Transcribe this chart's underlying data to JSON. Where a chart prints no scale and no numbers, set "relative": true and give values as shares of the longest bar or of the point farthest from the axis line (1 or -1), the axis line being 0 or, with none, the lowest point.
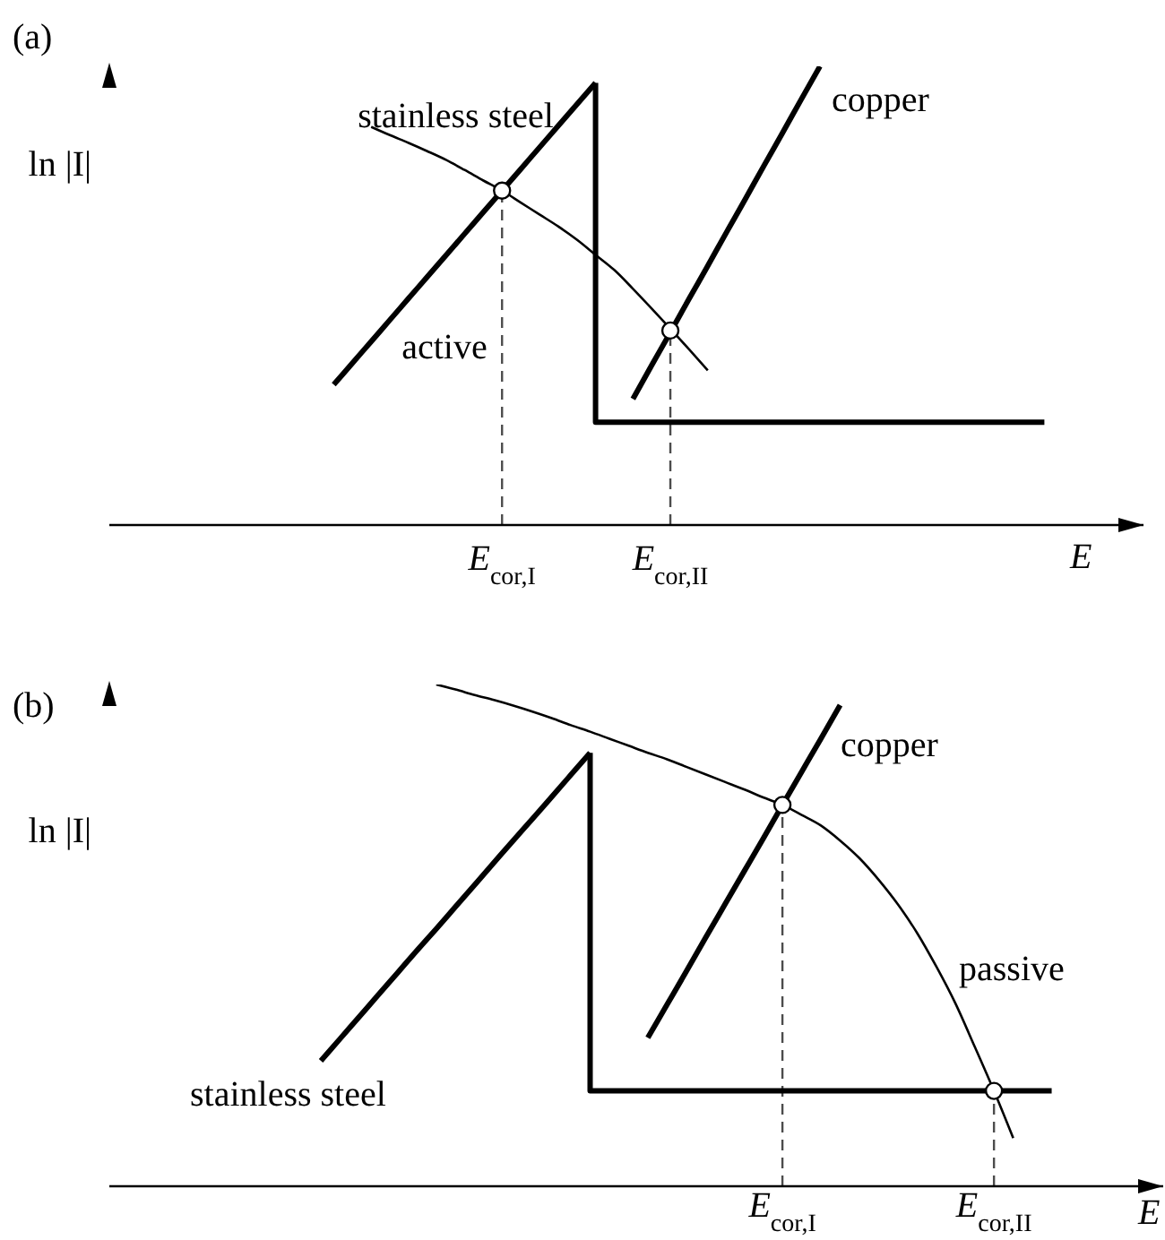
{
  "chart_data": [
    {
      "type": "line",
      "title": "(a)",
      "xlabel": "E",
      "ylabel": "ln |I|",
      "relative": true,
      "annotations": [
        "active"
      ],
      "categories": [
        null,
        null,
        null,
        null,
        null,
        null,
        null,
        null,
        null,
        null,
        null,
        null,
        null,
        null,
        null,
        null,
        null,
        null,
        null,
        null,
        null,
        "E$_{cor,I}$",
        null,
        null,
        null,
        null,
        null,
        null,
        null,
        null,
        "E$_{cor,II}$",
        null,
        null,
        null,
        null,
        null,
        null,
        null,
        null,
        null,
        null,
        null,
        null,
        null,
        null,
        null,
        null,
        null,
        null,
        null,
        null,
        null,
        null,
        null,
        null,
        null
      ],
      "series": [
        {
          "name": "stainless steel",
          "type": "line",
          "color": "#000000",
          "values": [
            null,
            null,
            null,
            null,
            null,
            null,
            null,
            null,
            null,
            null,
            null,
            null,
            0.306,
            0.353,
            0.4,
            0.447,
            0.494,
            0.541,
            0.588,
            0.635,
            0.682,
            0.729,
            0.776,
            0.823,
            0.87,
            0.917,
            0.964,
            null,
            null,
            null,
            null,
            null,
            null,
            null,
            null,
            null,
            null,
            null,
            null,
            null,
            null,
            null,
            null,
            null,
            null,
            null,
            null,
            null,
            null,
            null,
            null,
            null,
            null,
            null,
            null,
            null
          ]
        },
        {
          "type": "step",
          "color": "#000000",
          "values": [
            null,
            null,
            null,
            null,
            null,
            null,
            null,
            null,
            null,
            null,
            null,
            null,
            null,
            null,
            null,
            null,
            null,
            null,
            null,
            null,
            null,
            null,
            null,
            null,
            null,
            null,
            0.964,
            0.224,
            0.224,
            0.224,
            0.224,
            0.224,
            0.224,
            0.224,
            0.224,
            0.224,
            0.224,
            0.224,
            0.224,
            0.224,
            0.224,
            0.224,
            0.224,
            0.224,
            0.224,
            0.224,
            0.224,
            0.224,
            0.224,
            0.224,
            0.224,
            null,
            null,
            null,
            null,
            null
          ]
        },
        {
          "name": "copper",
          "type": "line",
          "color": "#000000",
          "values": [
            null,
            null,
            null,
            null,
            null,
            null,
            null,
            null,
            null,
            null,
            null,
            null,
            null,
            null,
            null,
            null,
            null,
            null,
            null,
            null,
            null,
            null,
            null,
            null,
            null,
            null,
            null,
            null,
            0.275,
            0.348,
            0.42,
            0.493,
            0.565,
            0.638,
            0.71,
            0.783,
            0.855,
            0.928,
            1,
            null,
            null,
            null,
            null,
            null,
            null,
            null,
            null,
            null,
            null,
            null,
            null,
            null,
            null,
            null,
            null,
            null
          ]
        },
        {
          "type": "line",
          "color": "#000000",
          "values": [
            null,
            null,
            null,
            null,
            null,
            null,
            null,
            null,
            null,
            null,
            null,
            null,
            null,
            null,
            0.868,
            0.85,
            0.833,
            0.815,
            0.796,
            0.774,
            0.751,
            0.729,
            0.703,
            0.677,
            0.651,
            0.622,
            0.589,
            0.556,
            0.515,
            0.472,
            0.428,
            0.383,
            0.337,
            null,
            null,
            null,
            null,
            null,
            null,
            null,
            null,
            null,
            null,
            null,
            null,
            null,
            null,
            null,
            null,
            null,
            null,
            null,
            null,
            null,
            null,
            null
          ]
        },
        {
          "type": "lollipop",
          "color": "#000000",
          "line_style": "dashed",
          "marker": "circle",
          "values": [
            null,
            null,
            null,
            null,
            null,
            null,
            null,
            null,
            null,
            null,
            null,
            null,
            null,
            null,
            null,
            null,
            null,
            null,
            null,
            null,
            null,
            0.729,
            null,
            null,
            null,
            null,
            null,
            null,
            null,
            null,
            0.424,
            null,
            null,
            null,
            null,
            null,
            null,
            null,
            null,
            null,
            null,
            null,
            null,
            null,
            null,
            null,
            null,
            null,
            null,
            null,
            null,
            null,
            null,
            null,
            null,
            null
          ]
        }
      ]
    },
    {
      "type": "line",
      "title": "(b)",
      "xlabel": "E",
      "ylabel": "ln |I|",
      "relative": true,
      "annotations": [
        "passive"
      ],
      "categories": [
        null,
        null,
        null,
        null,
        null,
        null,
        null,
        null,
        null,
        null,
        null,
        null,
        null,
        null,
        null,
        null,
        null,
        null,
        null,
        null,
        null,
        null,
        null,
        null,
        null,
        null,
        null,
        null,
        null,
        null,
        null,
        null,
        null,
        null,
        null,
        "E$_{cor,I}$",
        null,
        null,
        null,
        null,
        null,
        null,
        null,
        null,
        null,
        null,
        "E$_{cor,II}$",
        null,
        null,
        null,
        null,
        null,
        null,
        null,
        null
      ],
      "series": [
        {
          "name": "stainless steel",
          "type": "line",
          "color": "#000000",
          "values": [
            null,
            null,
            null,
            null,
            null,
            null,
            null,
            null,
            null,
            null,
            null,
            0.25,
            0.294,
            0.338,
            0.382,
            0.426,
            0.47,
            0.513,
            0.557,
            0.601,
            0.645,
            0.689,
            0.732,
            0.776,
            0.82,
            0.864,
            null,
            null,
            null,
            null,
            null,
            null,
            null,
            null,
            null,
            null,
            null,
            null,
            null,
            null,
            null,
            null,
            null,
            null,
            null,
            null,
            null,
            null,
            null,
            null,
            null,
            null,
            null,
            null,
            null
          ]
        },
        {
          "type": "step",
          "color": "#000000",
          "values": [
            null,
            null,
            null,
            null,
            null,
            null,
            null,
            null,
            null,
            null,
            null,
            null,
            null,
            null,
            null,
            null,
            null,
            null,
            null,
            null,
            null,
            null,
            null,
            null,
            null,
            0.864,
            0.19,
            0.19,
            0.19,
            0.19,
            0.19,
            0.19,
            0.19,
            0.19,
            0.19,
            0.19,
            0.19,
            0.19,
            0.19,
            0.19,
            0.19,
            0.19,
            0.19,
            0.19,
            0.19,
            0.19,
            0.19,
            0.19,
            0.19,
            0.19,
            null,
            null,
            null,
            null,
            null
          ]
        },
        {
          "name": "copper",
          "type": "line",
          "color": "#000000",
          "values": [
            null,
            null,
            null,
            null,
            null,
            null,
            null,
            null,
            null,
            null,
            null,
            null,
            null,
            null,
            null,
            null,
            null,
            null,
            null,
            null,
            null,
            null,
            null,
            null,
            null,
            null,
            null,
            null,
            0.296,
            0.362,
            0.428,
            0.495,
            0.561,
            0.627,
            0.693,
            0.76,
            0.826,
            0.892,
            0.959,
            null,
            null,
            null,
            null,
            null,
            null,
            null,
            null,
            null,
            null,
            null,
            null,
            null,
            null,
            null,
            null
          ]
        },
        {
          "type": "line",
          "color": "#000000",
          "values": [
            null,
            null,
            null,
            null,
            null,
            null,
            null,
            null,
            null,
            null,
            null,
            null,
            null,
            null,
            null,
            null,
            null,
            1,
            0.99,
            0.979,
            0.969,
            0.958,
            0.946,
            0.933,
            0.919,
            0.906,
            0.892,
            0.878,
            0.864,
            0.851,
            0.836,
            0.821,
            0.806,
            0.791,
            0.775,
            0.76,
            0.74,
            0.719,
            0.689,
            0.654,
            0.611,
            0.562,
            0.505,
            0.438,
            0.364,
            0.278,
            0.19,
            0.096,
            null,
            null,
            null,
            null,
            null,
            null,
            null
          ]
        },
        {
          "type": "lollipop",
          "color": "#000000",
          "line_style": "dashed",
          "marker": "circle",
          "values": [
            null,
            null,
            null,
            null,
            null,
            null,
            null,
            null,
            null,
            null,
            null,
            null,
            null,
            null,
            null,
            null,
            null,
            null,
            null,
            null,
            null,
            null,
            null,
            null,
            null,
            null,
            null,
            null,
            null,
            null,
            null,
            null,
            null,
            null,
            null,
            0.76,
            null,
            null,
            null,
            null,
            null,
            null,
            null,
            null,
            null,
            null,
            0.19,
            null,
            null,
            null,
            null,
            null,
            null,
            null,
            null
          ]
        }
      ]
    }
  ]
}
